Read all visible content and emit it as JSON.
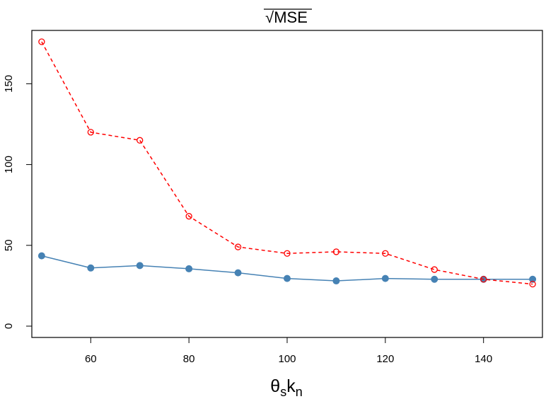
{
  "chart_data": {
    "type": "line",
    "title": "MSE",
    "title_prefix": "√",
    "xlabel": {
      "main1": "θ",
      "sub1": "s",
      "main2": "k",
      "sub2": "n"
    },
    "ylabel": "",
    "xlim": [
      48,
      152
    ],
    "ylim": [
      -7,
      183
    ],
    "x": [
      50,
      60,
      70,
      80,
      90,
      100,
      110,
      120,
      130,
      140,
      150
    ],
    "x_ticks": [
      60,
      80,
      100,
      120,
      140
    ],
    "y_ticks": [
      0,
      50,
      100,
      150
    ],
    "grid": false,
    "legend": "none",
    "series": [
      {
        "line_style": "solid",
        "marker": "filled-circle",
        "color": "#4682B4",
        "values": [
          43.5,
          36,
          37.5,
          35.5,
          33,
          29.5,
          28,
          29.5,
          29,
          29,
          29
        ]
      },
      {
        "line_style": "dashed",
        "marker": "open-circle",
        "color": "#FF0000",
        "values": [
          176,
          120,
          115,
          68,
          49,
          45,
          46,
          45,
          35,
          29,
          26
        ]
      }
    ]
  }
}
